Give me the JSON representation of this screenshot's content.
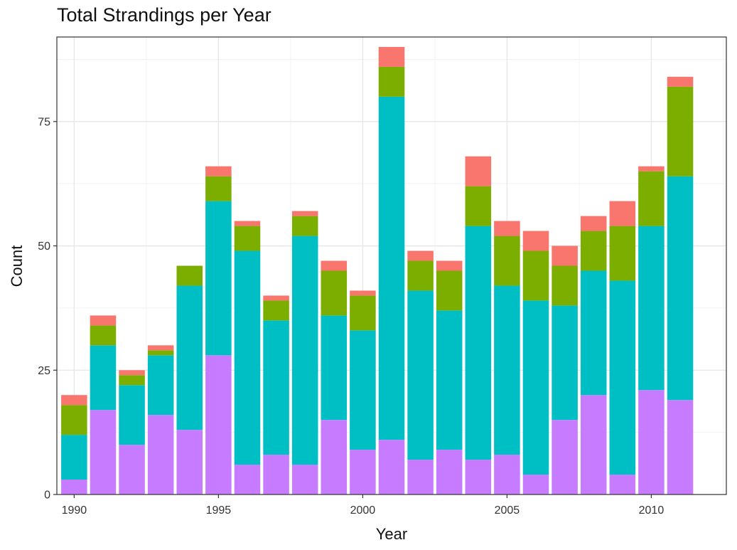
{
  "chart_data": {
    "type": "bar",
    "stacked": true,
    "title": "Total Strandings per Year",
    "xlabel": "Year",
    "ylabel": "Count",
    "ylim": [
      0,
      92
    ],
    "xlim": [
      1989.4,
      2012.6
    ],
    "yticks": [
      0,
      25,
      50,
      75
    ],
    "xticks": [
      1990,
      1995,
      2000,
      2005,
      2010
    ],
    "grid": true,
    "legend": "none",
    "x": [
      1990,
      1991,
      1992,
      1993,
      1994,
      1995,
      1996,
      1997,
      1998,
      1999,
      2000,
      2001,
      2002,
      2003,
      2004,
      2005,
      2006,
      2007,
      2008,
      2009,
      2010,
      2011
    ],
    "series": [
      {
        "color": "#C77CFF",
        "values": [
          3,
          17,
          10,
          16,
          13,
          28,
          6,
          8,
          6,
          15,
          9,
          11,
          7,
          9,
          7,
          8,
          4,
          15,
          20,
          4,
          21,
          19
        ]
      },
      {
        "color": "#00BFC4",
        "values": [
          9,
          13,
          12,
          12,
          29,
          31,
          43,
          27,
          46,
          21,
          24,
          69,
          34,
          28,
          47,
          34,
          35,
          23,
          25,
          39,
          33,
          45
        ]
      },
      {
        "color": "#7CAE00",
        "values": [
          6,
          4,
          2,
          1,
          4,
          5,
          5,
          4,
          4,
          9,
          7,
          6,
          6,
          8,
          8,
          10,
          10,
          8,
          8,
          11,
          11,
          18
        ]
      },
      {
        "color": "#F8766D",
        "values": [
          2,
          2,
          1,
          1,
          0,
          2,
          1,
          1,
          1,
          2,
          1,
          4,
          2,
          2,
          6,
          3,
          4,
          4,
          3,
          5,
          1,
          2
        ]
      }
    ]
  }
}
